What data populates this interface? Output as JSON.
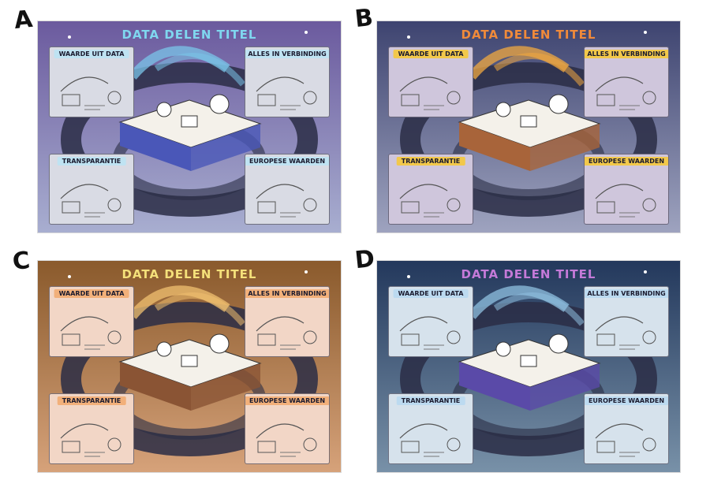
{
  "variants": [
    {
      "letter": "A",
      "title": "DATA DELEN TITEL",
      "panels": [
        "WAARDE UIT DATA",
        "ALLES IN VERBINDING",
        "TRANSPARANTIE",
        "EUROPESE WAARDEN"
      ],
      "colors": {
        "bg_top": "#6b5a9e",
        "bg_bottom": "#a8aed0",
        "panel": "#d9dbe4",
        "label": "#bfe3f2",
        "title": "#7fd7ef",
        "box": "#4a57b8",
        "arc": "#7ac4e8"
      }
    },
    {
      "letter": "B",
      "title": "DATA DELEN TITEL",
      "panels": [
        "WAARDE UIT DATA",
        "ALLES IN VERBINDING",
        "TRANSPARANTIE",
        "EUROPESE WAARDEN"
      ],
      "colors": {
        "bg_top": "#3e4470",
        "bg_bottom": "#9ea3bf",
        "panel": "#cfc6dc",
        "label": "#f2c84b",
        "title": "#f08a3a",
        "box": "#a8643a",
        "arc": "#f0a840"
      }
    },
    {
      "letter": "C",
      "title": "DATA DELEN TITEL",
      "panels": [
        "WAARDE UIT DATA",
        "ALLES IN VERBINDING",
        "TRANSPARANTIE",
        "EUROPESE WAARDEN"
      ],
      "colors": {
        "bg_top": "#8a5a2c",
        "bg_bottom": "#d6a27a",
        "panel": "#f2d6c6",
        "label": "#f2b07a",
        "title": "#f4e07a",
        "box": "#8a5434",
        "arc": "#f0c070"
      }
    },
    {
      "letter": "D",
      "title": "DATA DELEN TITEL",
      "panels": [
        "WAARDE UIT DATA",
        "ALLES IN VERBINDING",
        "TRANSPARANTIE",
        "EUROPESE WAARDEN"
      ],
      "colors": {
        "bg_top": "#23385c",
        "bg_bottom": "#7891a8",
        "panel": "#d6e2ec",
        "label": "#bcdaf0",
        "title": "#c47ad8",
        "box": "#5a4aa8",
        "arc": "#8fc0e0"
      }
    }
  ]
}
